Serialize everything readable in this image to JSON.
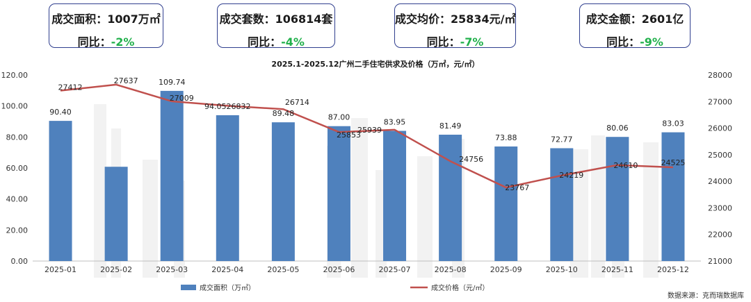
{
  "kpis": [
    {
      "label": "成交面积：",
      "value": "1007万㎡",
      "yoy_label": "同比：",
      "yoy_value": "-2%"
    },
    {
      "label": "成交套数：",
      "value": "106814套",
      "yoy_label": "同比：",
      "yoy_value": "-4%"
    },
    {
      "label": "成交均价：",
      "value": "25834元/㎡",
      "yoy_label": "同比：",
      "yoy_value": "-7%"
    },
    {
      "label": "成交金额：",
      "value": "2601亿",
      "yoy_label": "同比：",
      "yoy_value": "-9%"
    }
  ],
  "colors": {
    "bar": "#4f81bd",
    "line": "#c0504d",
    "negative": "#22b14c",
    "card_border": "#2f3e8e"
  },
  "chart_data": {
    "type": "bar",
    "title": "2025.1-2025.12广州二手住宅供求及价格（万㎡，元/㎡）",
    "categories": [
      "2025-01",
      "2025-02",
      "2025-03",
      "2025-04",
      "2025-05",
      "2025-06",
      "2025-07",
      "2025-08",
      "2025-09",
      "2025-10",
      "2025-11",
      "2025-12"
    ],
    "series": [
      {
        "name": "成交面积（万㎡）",
        "type": "bar",
        "axis": "left",
        "values": [
          90.4,
          60.8,
          109.74,
          94.0526832,
          89.48,
          87.0,
          83.95,
          81.49,
          73.88,
          72.77,
          80.06,
          83.03
        ],
        "labels": [
          "90.40",
          "",
          "109.74",
          "94.0526832",
          "89.48",
          "87.00",
          "83.95",
          "81.49",
          "73.88",
          "72.77",
          "80.06",
          "83.03"
        ]
      },
      {
        "name": "成交价格（元/㎡）",
        "type": "line",
        "axis": "right",
        "values": [
          27412,
          27637,
          27009,
          26840,
          26714,
          25853,
          25939,
          24756,
          23767,
          24219,
          24610,
          24525
        ],
        "labels": [
          "27412",
          "27637",
          "27009",
          "",
          "26714",
          "25853",
          "25939",
          "24756",
          "23767",
          "24219",
          "24610",
          "24525"
        ]
      }
    ],
    "y_left": {
      "min": 0,
      "max": 120,
      "step": 20,
      "tick_labels": [
        "0.00",
        "20.00",
        "40.00",
        "60.00",
        "80.00",
        "100.00",
        "120.00"
      ]
    },
    "y_right": {
      "min": 21000,
      "max": 28000,
      "step": 1000,
      "tick_labels": [
        "21000",
        "22000",
        "23000",
        "24000",
        "25000",
        "26000",
        "27000",
        "28000"
      ]
    },
    "legend_position": "bottom",
    "source": "数据来源：克而瑞数据库"
  }
}
